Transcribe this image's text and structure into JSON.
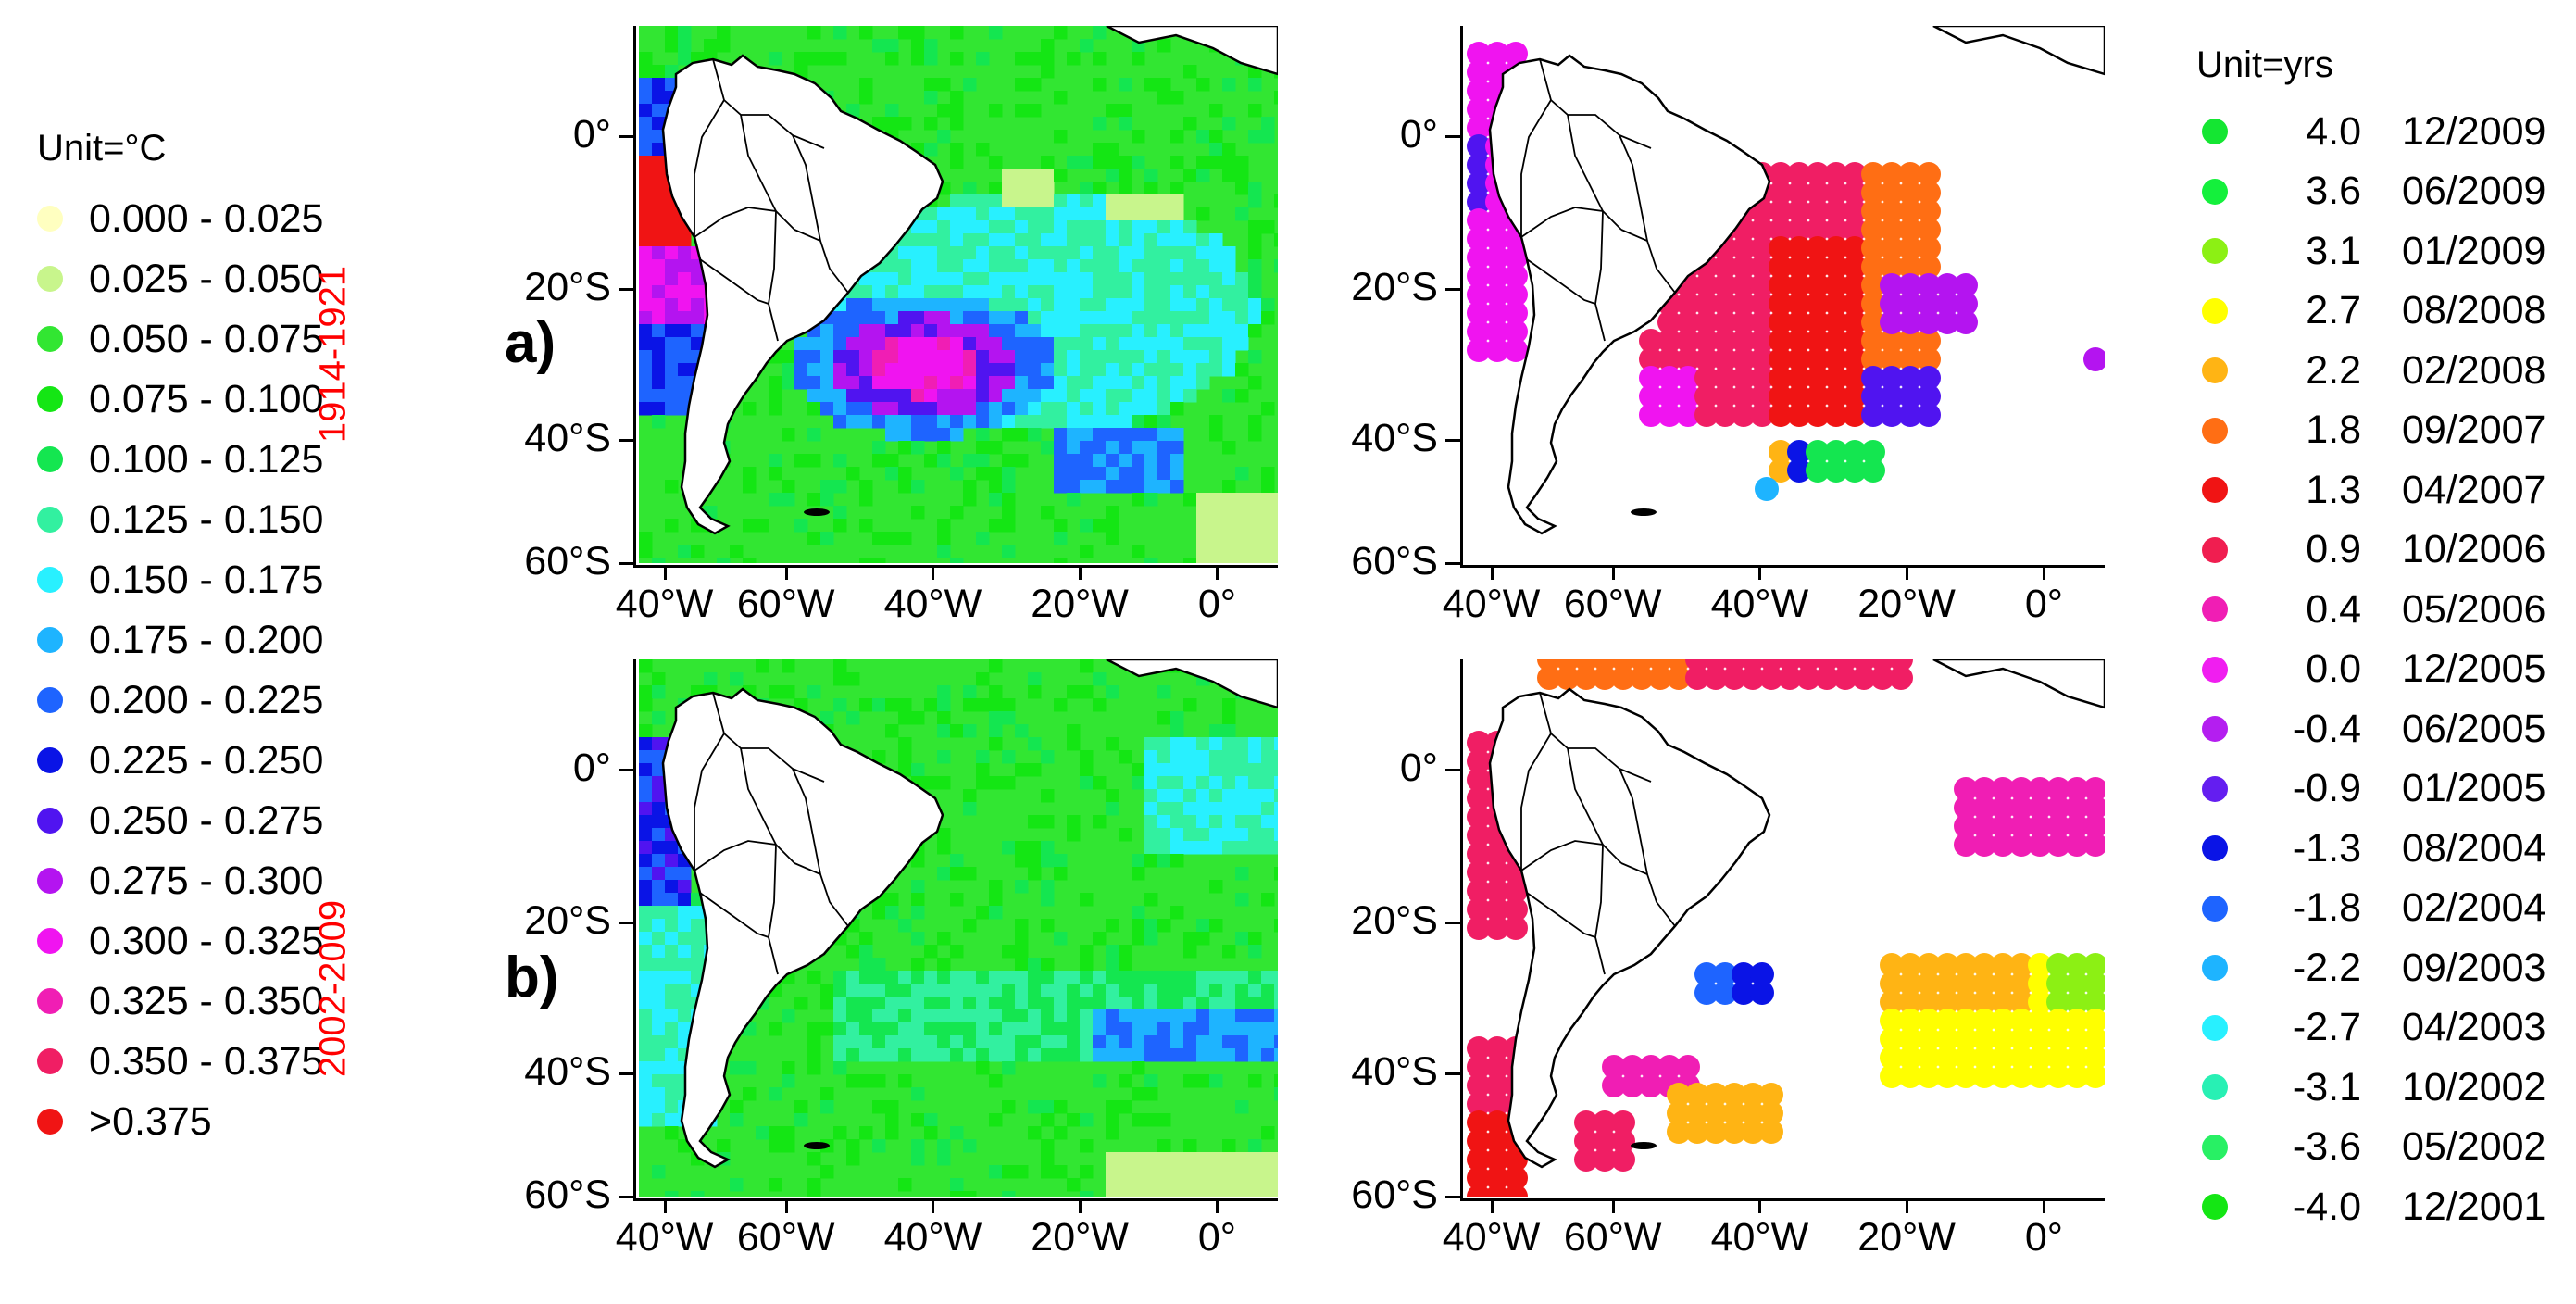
{
  "left_legend": {
    "title": "Unit=°C",
    "items": [
      {
        "label": "0.000 - 0.025",
        "color": "#ffffc0"
      },
      {
        "label": "0.025 - 0.050",
        "color": "#c8f58c"
      },
      {
        "label": "0.050 - 0.075",
        "color": "#32e632"
      },
      {
        "label": "0.075 - 0.100",
        "color": "#14e614"
      },
      {
        "label": "0.100 - 0.125",
        "color": "#14e650"
      },
      {
        "label": "0.125 - 0.150",
        "color": "#32f0a0"
      },
      {
        "label": "0.150 - 0.175",
        "color": "#28f0ff"
      },
      {
        "label": "0.175 - 0.200",
        "color": "#1eb4ff"
      },
      {
        "label": "0.200 - 0.225",
        "color": "#1e64ff"
      },
      {
        "label": "0.225 - 0.250",
        "color": "#0a14e6"
      },
      {
        "label": "0.250 - 0.275",
        "color": "#5014f0"
      },
      {
        "label": "0.275 - 0.300",
        "color": "#b414f0"
      },
      {
        "label": "0.300 - 0.325",
        "color": "#f014f0"
      },
      {
        "label": "0.325 - 0.350",
        "color": "#f01eb4"
      },
      {
        "label": "0.350 - 0.375",
        "color": "#f01e64"
      },
      {
        "label": ">0.375",
        "color": "#f01414"
      }
    ]
  },
  "right_legend": {
    "title": "Unit=yrs",
    "items": [
      {
        "value": "4.0",
        "date": "12/2009",
        "color": "#14e632"
      },
      {
        "value": "3.6",
        "date": "06/2009",
        "color": "#14f03c"
      },
      {
        "value": "3.1",
        "date": "01/2009",
        "color": "#8cf014"
      },
      {
        "value": "2.7",
        "date": "08/2008",
        "color": "#ffff00"
      },
      {
        "value": "2.2",
        "date": "02/2008",
        "color": "#ffb414"
      },
      {
        "value": "1.8",
        "date": "09/2007",
        "color": "#ff6e14"
      },
      {
        "value": "1.3",
        "date": "04/2007",
        "color": "#f01414"
      },
      {
        "value": "0.9",
        "date": "10/2006",
        "color": "#f01e50"
      },
      {
        "value": "0.4",
        "date": "05/2006",
        "color": "#f01eb4"
      },
      {
        "value": "0.0",
        "date": "12/2005",
        "color": "#f01ef0"
      },
      {
        "value": "-0.4",
        "date": "06/2005",
        "color": "#b41ef0"
      },
      {
        "value": "-0.9",
        "date": "01/2005",
        "color": "#641ef0"
      },
      {
        "value": "-1.3",
        "date": "08/2004",
        "color": "#0a14e6"
      },
      {
        "value": "-1.8",
        "date": "02/2004",
        "color": "#1e64ff"
      },
      {
        "value": "-2.2",
        "date": "09/2003",
        "color": "#1eb4ff"
      },
      {
        "value": "-2.7",
        "date": "04/2003",
        "color": "#28f0ff"
      },
      {
        "value": "-3.1",
        "date": "10/2002",
        "color": "#28f0b4"
      },
      {
        "value": "-3.6",
        "date": "05/2002",
        "color": "#28f064"
      },
      {
        "value": "-4.0",
        "date": "12/2001",
        "color": "#14e614"
      }
    ]
  },
  "rows": [
    {
      "period": "1914-1921",
      "panel_label": "a)"
    },
    {
      "period": "2002-2009",
      "panel_label": "b)"
    }
  ],
  "y_ticks": [
    "0°",
    "20°S",
    "40°S",
    "60°S"
  ],
  "x_ticks": [
    "40°W",
    "60°W",
    "40°W",
    "20°W",
    "0°"
  ]
}
